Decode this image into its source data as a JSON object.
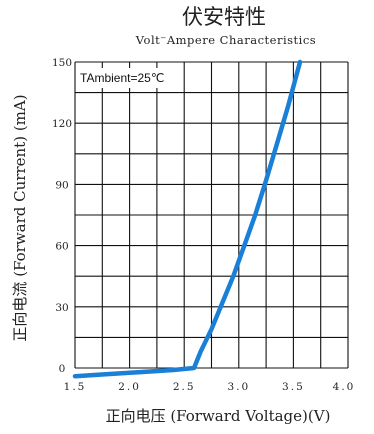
{
  "chart_data": {
    "type": "line",
    "title": "伏安特性",
    "subtitle": "Volt⁻Ampere Characteristics",
    "xlabel": "正向电压 (Forward Voltage)(V)",
    "ylabel": "正向电流 (Forward Current) (mA)",
    "annotation": "TAmbient=25℃",
    "xlim": [
      1.5,
      4.0
    ],
    "ylim": [
      0,
      150
    ],
    "x_ticks": [
      1.5,
      2.0,
      2.5,
      3.0,
      3.5,
      4.0
    ],
    "x_tick_labels": [
      "1.5",
      "2.0",
      "2.5",
      "3.0",
      "3.5",
      "4.0"
    ],
    "y_ticks": [
      0,
      30,
      60,
      90,
      120,
      150
    ],
    "y_tick_labels": [
      "0",
      "30",
      "60",
      "90",
      "120",
      "150"
    ],
    "grid": true,
    "series_color": "#1a7fd6",
    "series": [
      {
        "x": [
          1.5,
          1.8,
          2.1,
          2.4,
          2.59,
          2.65,
          2.75,
          2.85,
          2.95,
          3.05,
          3.15,
          3.25,
          3.35,
          3.45,
          3.56
        ],
        "values": [
          -4,
          -3,
          -2,
          -1,
          0,
          8,
          19,
          32,
          45,
          60,
          75,
          92,
          110,
          128,
          150
        ]
      }
    ]
  }
}
